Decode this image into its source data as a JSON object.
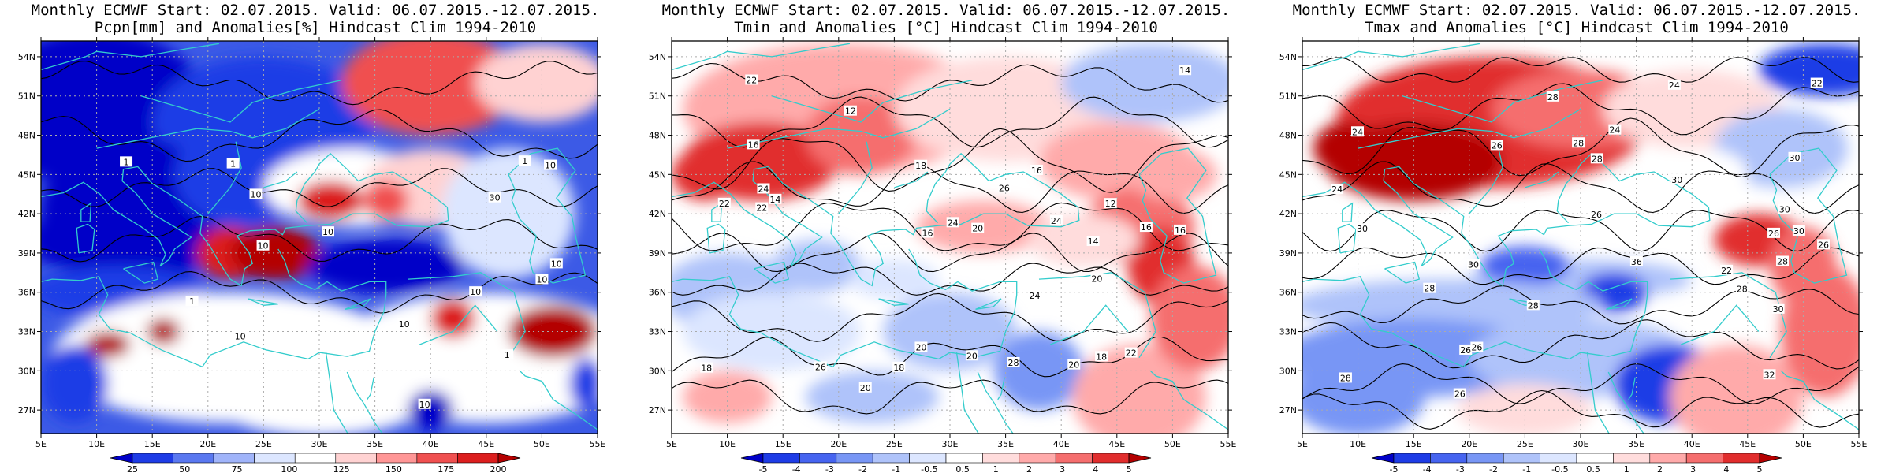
{
  "panels": [
    {
      "id": "pcpn",
      "title_line1": "Monthly ECMWF Start: 02.07.2015. Valid: 06.07.2015.-12.07.2015.",
      "title_line2": "Pcpn[mm] and Anomalies[%] Hindcast Clim 1994-2010",
      "colorbar": {
        "labels": [
          "25",
          "50",
          "75",
          "100",
          "125",
          "150",
          "175",
          "200"
        ],
        "colors": [
          "#0000c8",
          "#1e3ce6",
          "#5a78f0",
          "#a0b4fa",
          "#dce6ff",
          "#ffffff",
          "#ffd2d2",
          "#ff9696",
          "#f05050",
          "#dc1e1e",
          "#b40000"
        ]
      },
      "contour_labels": [
        "10",
        "10",
        "10",
        "10",
        "10",
        "10",
        "10",
        "10",
        "1",
        "1",
        "1",
        "30",
        "10",
        "1",
        "1",
        "10"
      ]
    },
    {
      "id": "tmin",
      "title_line1": "Monthly ECMWF Start: 02.07.2015. Valid: 06.07.2015.-12.07.2015.",
      "title_line2": "Tmin and Anomalies [°C] Hindcast Clim 1994-2010",
      "colorbar": {
        "labels": [
          "-5",
          "-4",
          "-3",
          "-2",
          "-1",
          "-0.5",
          "0.5",
          "1",
          "2",
          "3",
          "4",
          "5"
        ],
        "colors": [
          "#0000c8",
          "#1e3ce6",
          "#4664f0",
          "#7896f5",
          "#afc3fa",
          "#dce6ff",
          "#ffffff",
          "#ffdcdc",
          "#ffaaaa",
          "#f56e6e",
          "#e12d2d",
          "#b40000"
        ]
      },
      "contour_labels": [
        "16",
        "16",
        "12",
        "18",
        "16",
        "16",
        "14",
        "18",
        "18",
        "22",
        "14",
        "16",
        "12",
        "20",
        "22",
        "24",
        "26",
        "22",
        "24",
        "20",
        "18",
        "24",
        "20",
        "22",
        "20",
        "20",
        "26",
        "14",
        "20",
        "24",
        "28"
      ]
    },
    {
      "id": "tmax",
      "title_line1": "Monthly ECMWF Start: 02.07.2015. Valid: 06.07.2015.-12.07.2015.",
      "title_line2": "Tmax and Anomalies [°C] Hindcast Clim 1994-2010",
      "colorbar": {
        "labels": [
          "-5",
          "-4",
          "-3",
          "-2",
          "-1",
          "-0.5",
          "0.5",
          "1",
          "2",
          "3",
          "4",
          "5"
        ],
        "colors": [
          "#0000c8",
          "#1e3ce6",
          "#4664f0",
          "#7896f5",
          "#afc3fa",
          "#dce6ff",
          "#ffffff",
          "#ffdcdc",
          "#ffaaaa",
          "#f56e6e",
          "#e12d2d",
          "#b40000"
        ]
      },
      "contour_labels": [
        "24",
        "26",
        "22",
        "24",
        "26",
        "28",
        "28",
        "30",
        "26",
        "26",
        "30",
        "28",
        "22",
        "26",
        "26",
        "30",
        "30",
        "24",
        "24",
        "28",
        "30",
        "28",
        "28",
        "30",
        "28",
        "32",
        "28",
        "36",
        "30",
        "26"
      ]
    }
  ],
  "axes": {
    "lat_labels": [
      "54N",
      "51N",
      "48N",
      "45N",
      "42N",
      "39N",
      "36N",
      "33N",
      "30N",
      "27N"
    ],
    "lon_labels": [
      "5E",
      "10E",
      "15E",
      "20E",
      "25E",
      "30E",
      "35E",
      "40E",
      "45E",
      "50E",
      "55E"
    ]
  },
  "colors": {
    "coastline": "#33cccc",
    "contour": "#000000",
    "grid": "#aaaaaa"
  }
}
